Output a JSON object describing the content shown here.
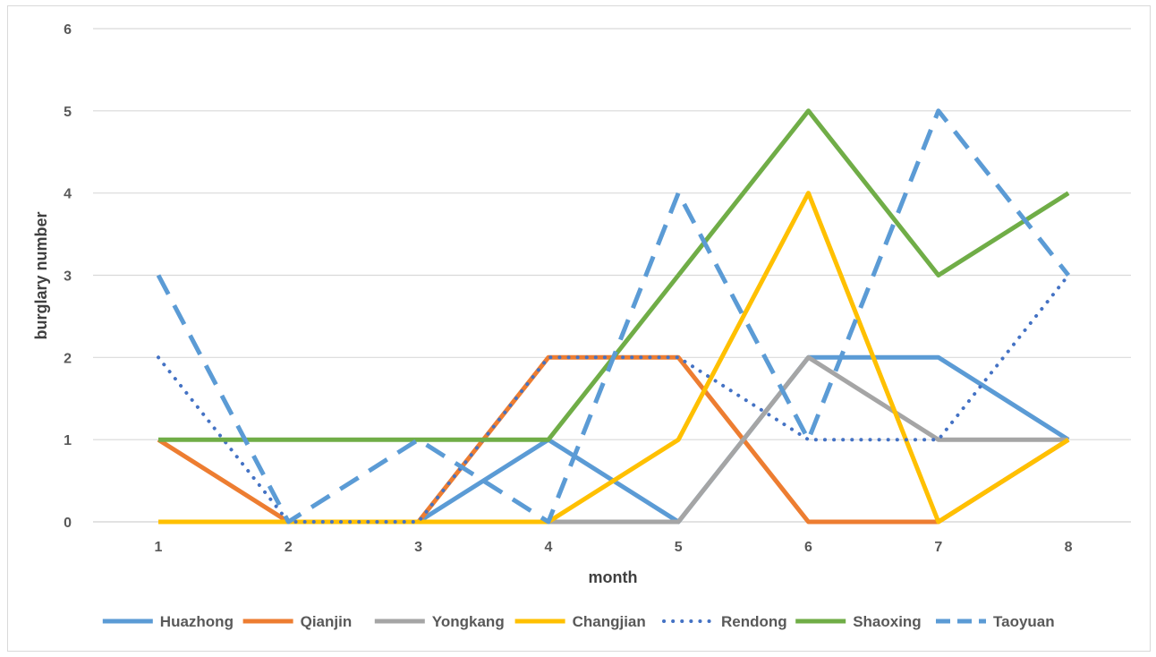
{
  "chart_data": {
    "type": "line",
    "xlabel": "month",
    "ylabel": "burglary number",
    "x": [
      1,
      2,
      3,
      4,
      5,
      6,
      7,
      8
    ],
    "ylim": [
      0,
      6
    ],
    "yticks": [
      0,
      1,
      2,
      3,
      4,
      5,
      6
    ],
    "grid": true,
    "legend_position": "bottom",
    "series": [
      {
        "name": "Huazhong",
        "color": "#5B9BD5",
        "style": "solid",
        "values": [
          0,
          0,
          0,
          1,
          0,
          2,
          2,
          1
        ]
      },
      {
        "name": "Qianjin",
        "color": "#ED7D31",
        "style": "solid",
        "values": [
          1,
          0,
          0,
          2,
          2,
          0,
          0,
          1
        ]
      },
      {
        "name": "Yongkang",
        "color": "#A5A5A5",
        "style": "solid",
        "values": [
          0,
          0,
          0,
          0,
          0,
          2,
          1,
          1
        ]
      },
      {
        "name": "Changjian",
        "color": "#FFC000",
        "style": "solid",
        "values": [
          0,
          0,
          0,
          0,
          1,
          4,
          0,
          1
        ]
      },
      {
        "name": "Rendong",
        "color": "#4472C4",
        "style": "dotted",
        "values": [
          2,
          0,
          0,
          2,
          2,
          1,
          1,
          3
        ]
      },
      {
        "name": "Shaoxing",
        "color": "#70AD47",
        "style": "solid",
        "values": [
          1,
          1,
          1,
          1,
          3,
          5,
          3,
          4
        ]
      },
      {
        "name": "Taoyuan",
        "color": "#5B9BD5",
        "style": "dashed",
        "values": [
          3,
          0,
          1,
          0,
          4,
          1,
          5,
          3
        ]
      }
    ]
  }
}
